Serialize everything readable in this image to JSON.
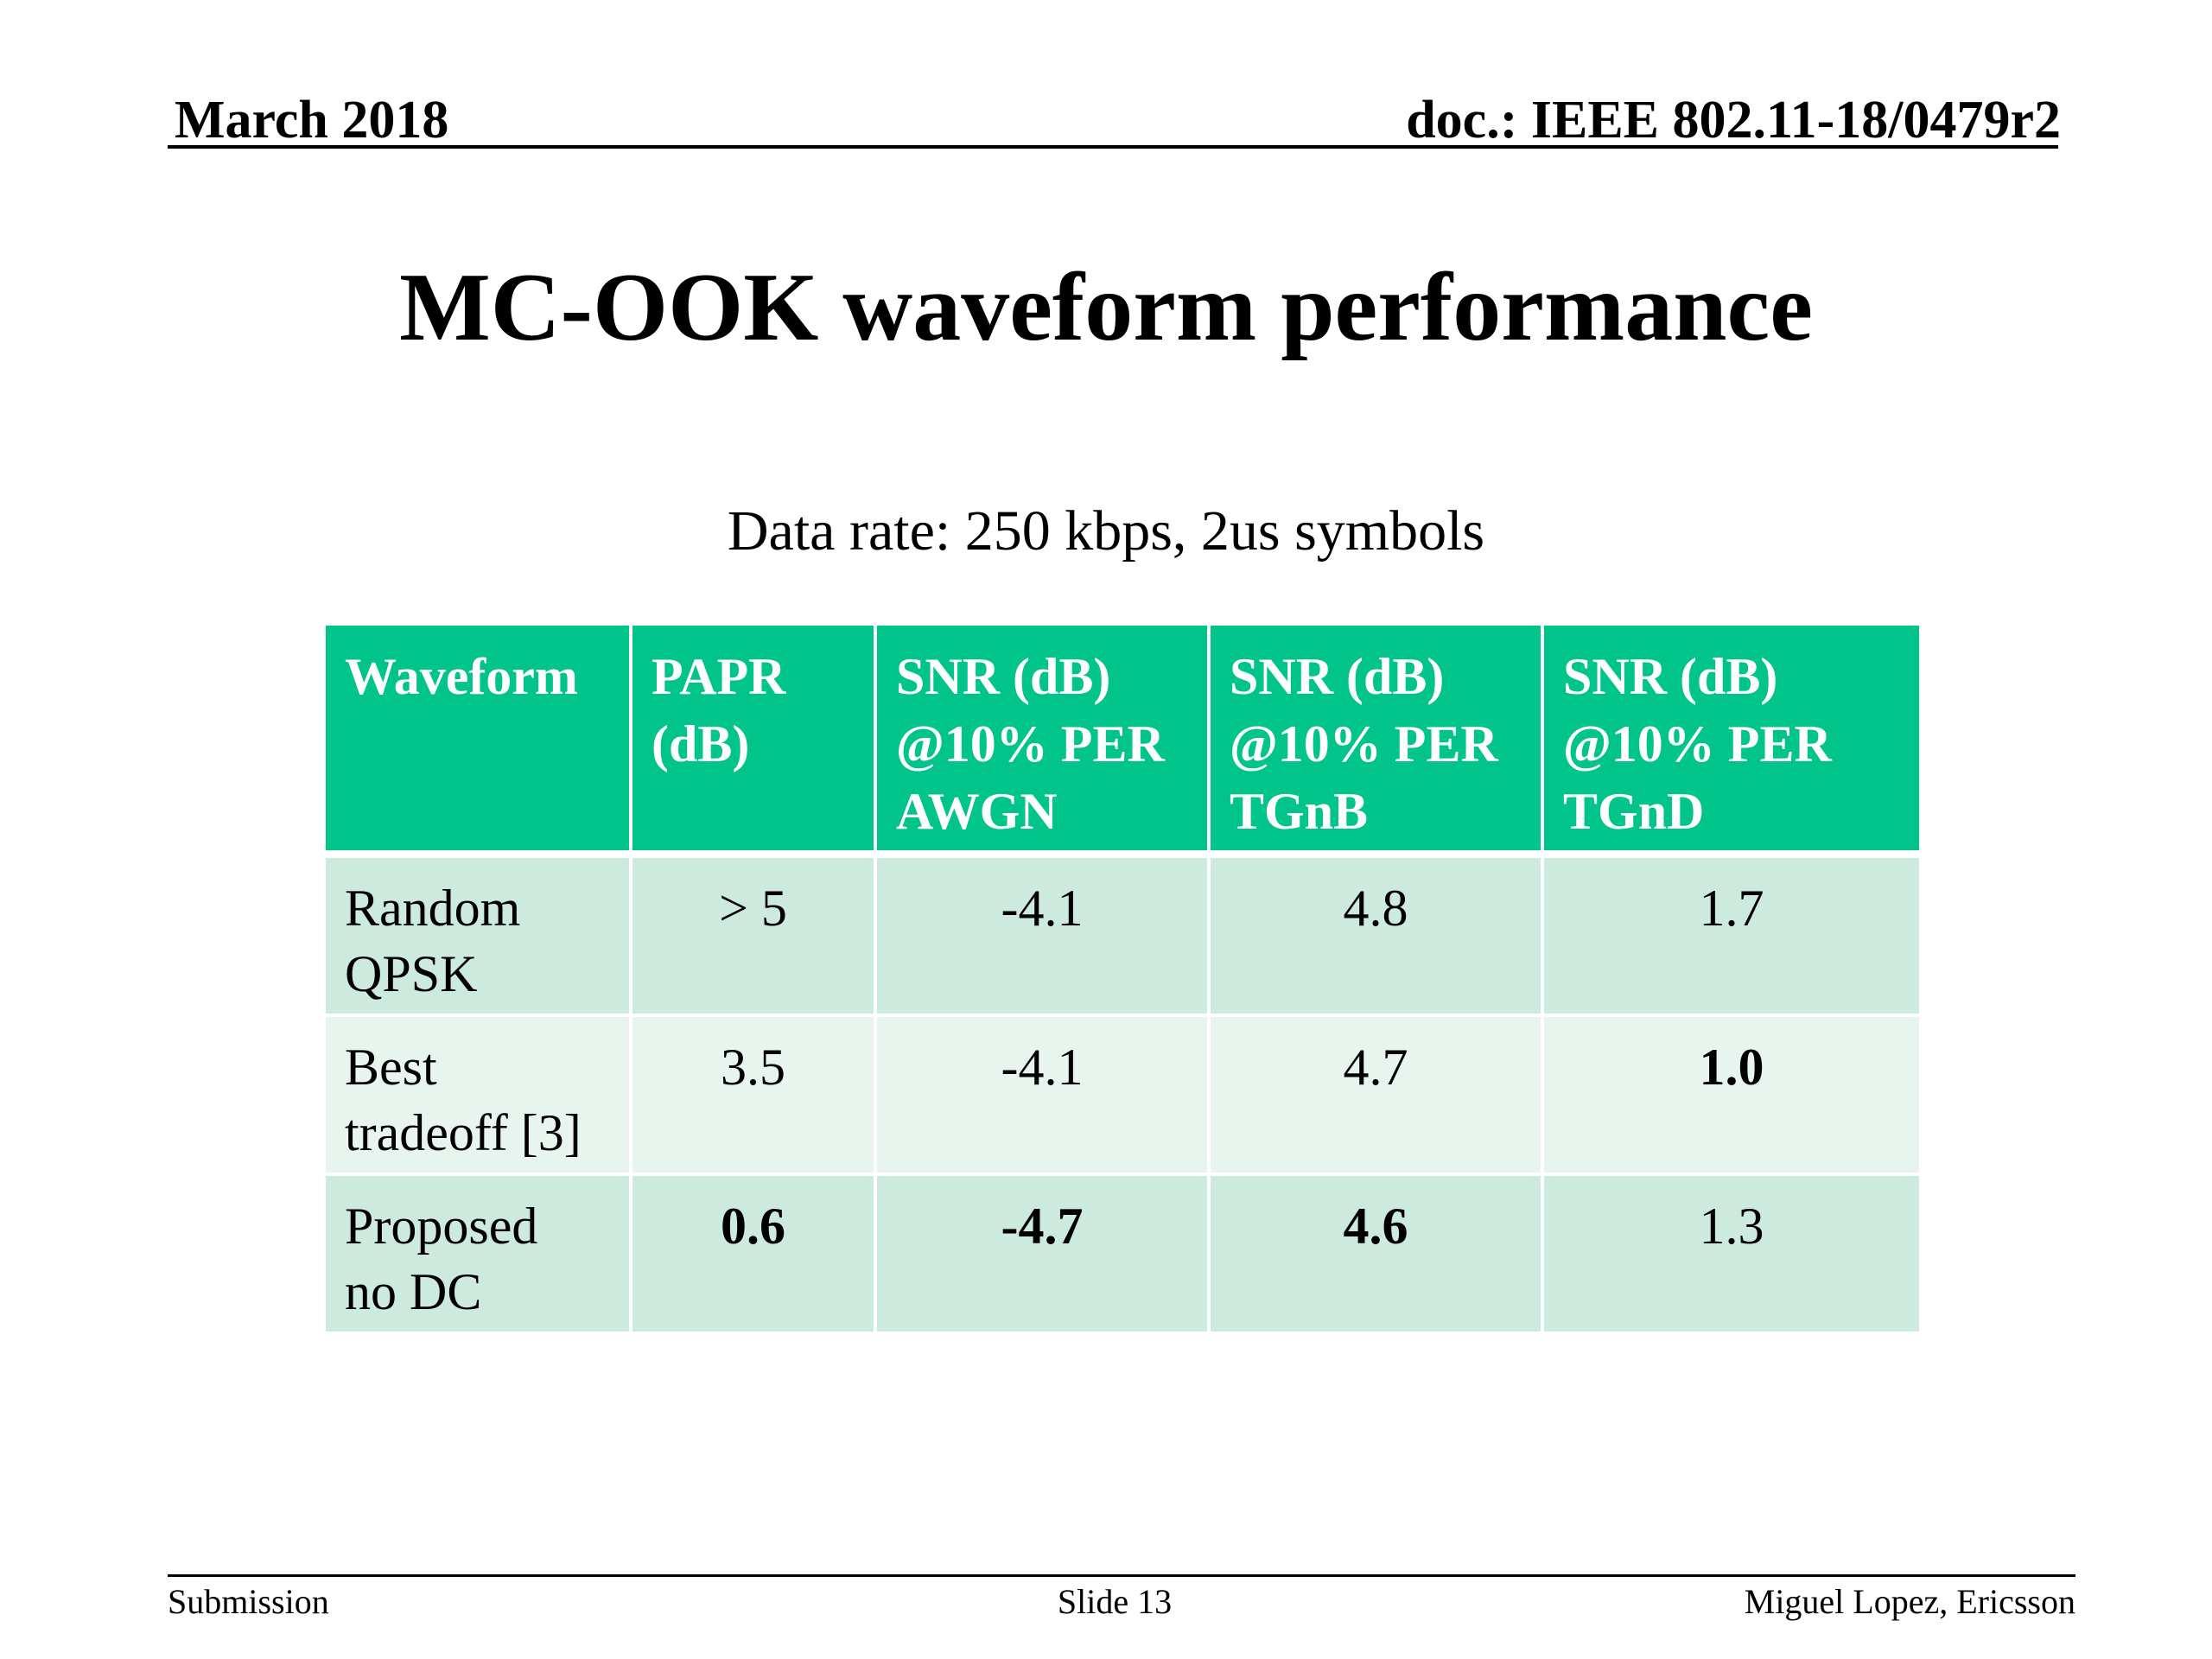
{
  "header": {
    "date": "March 2018",
    "doc": "doc.: IEEE 802.11-18/0479r2"
  },
  "title": "MC-OOK waveform performance",
  "subtitle": "Data rate: 250 kbps, 2us symbols",
  "table": {
    "headers": [
      [
        "Waveform"
      ],
      [
        "PAPR",
        "(dB)"
      ],
      [
        "SNR (dB)",
        "@10% PER",
        "AWGN"
      ],
      [
        "SNR (dB)",
        "@10% PER",
        "TGnB"
      ],
      [
        "SNR (dB)",
        "@10% PER",
        "TGnD"
      ]
    ],
    "rows": [
      {
        "label": [
          "Random",
          "QPSK"
        ],
        "values": [
          "> 5",
          "-4.1",
          "4.8",
          "1.7"
        ],
        "bold": [
          false,
          false,
          false,
          false
        ]
      },
      {
        "label": [
          "Best",
          "tradeoff [3]"
        ],
        "values": [
          "3.5",
          "-4.1",
          "4.7",
          "1.0"
        ],
        "bold": [
          false,
          false,
          false,
          true
        ]
      },
      {
        "label": [
          "Proposed",
          "no DC"
        ],
        "values": [
          "0.6",
          "-4.7",
          "4.6",
          "1.3"
        ],
        "bold": [
          true,
          true,
          true,
          false
        ]
      }
    ]
  },
  "footer": {
    "left": "Submission",
    "center": "Slide 13",
    "right": "Miguel Lopez, Ericsson"
  }
}
